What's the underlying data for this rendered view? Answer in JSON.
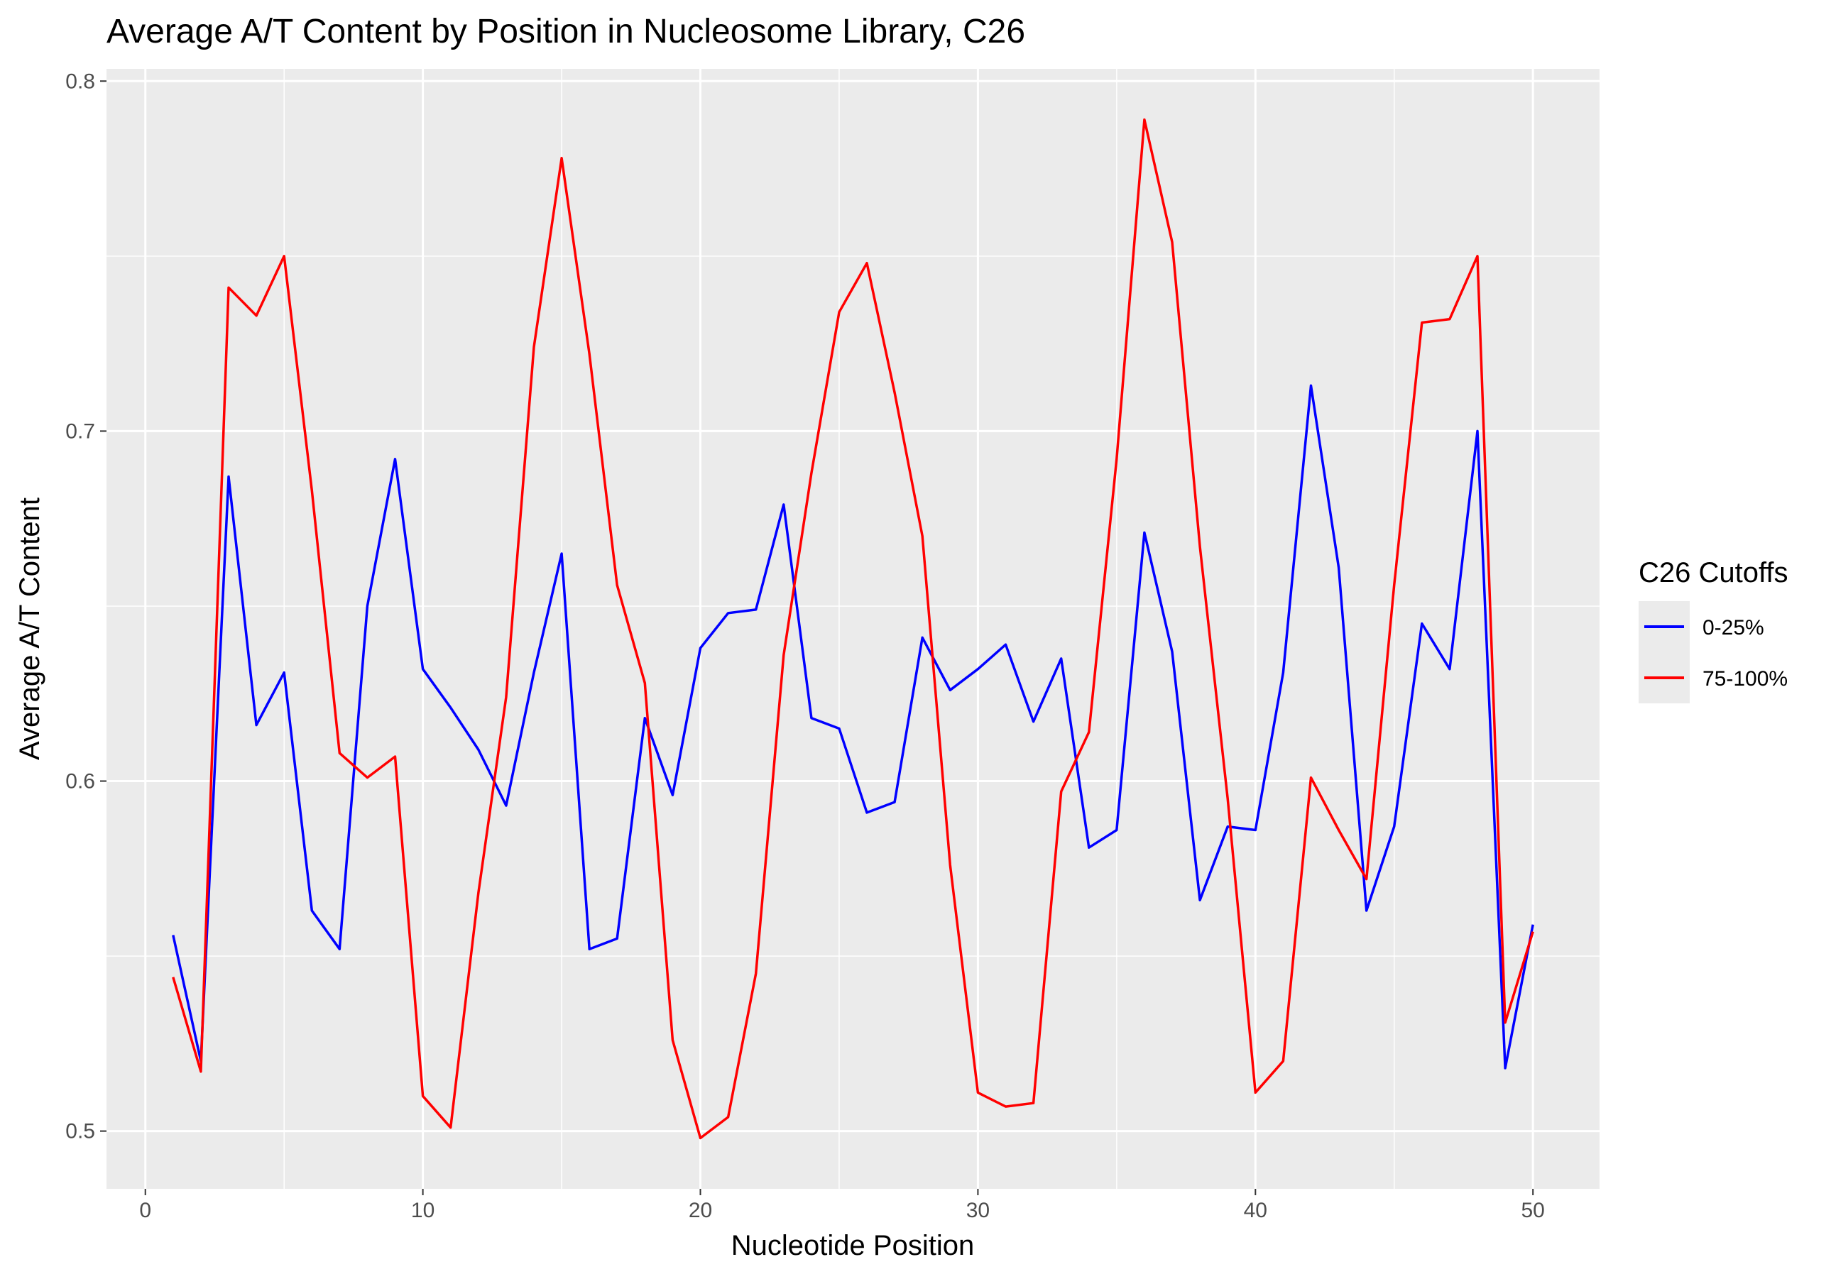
{
  "colors": {
    "panel_bg": "#EBEBEB",
    "grid": "#FFFFFF",
    "tick": "#333333",
    "series_0_25": "#0000FF",
    "series_75_100": "#FF0000"
  },
  "chart_data": {
    "type": "line",
    "title": "Average A/T Content by Position in Nucleosome Library, C26",
    "xlabel": "Nucleotide Position",
    "ylabel": "Average A/T Content",
    "xlim": [
      -1.4,
      52.4
    ],
    "ylim": [
      0.4835,
      0.8035
    ],
    "xticks": [
      0,
      10,
      20,
      30,
      40,
      50
    ],
    "xtick_labels": [
      "0",
      "10",
      "20",
      "30",
      "40",
      "50"
    ],
    "yticks": [
      0.5,
      0.6,
      0.7,
      0.8
    ],
    "ytick_labels": [
      "0.5",
      "0.6",
      "0.7",
      "0.8"
    ],
    "grid": true,
    "legend": {
      "title": "C26 Cutoffs",
      "position": "right"
    },
    "x": [
      1,
      2,
      3,
      4,
      5,
      6,
      7,
      8,
      9,
      10,
      11,
      12,
      13,
      14,
      15,
      16,
      17,
      18,
      19,
      20,
      21,
      22,
      23,
      24,
      25,
      26,
      27,
      28,
      29,
      30,
      31,
      32,
      33,
      34,
      35,
      36,
      37,
      38,
      39,
      40,
      41,
      42,
      43,
      44,
      45,
      46,
      47,
      48,
      49,
      50
    ],
    "series": [
      {
        "name": "0-25%",
        "color": "#0000FF",
        "values": [
          0.556,
          0.52,
          0.687,
          0.616,
          0.631,
          0.563,
          0.552,
          0.65,
          0.692,
          0.632,
          0.621,
          0.609,
          0.593,
          0.631,
          0.665,
          0.552,
          0.555,
          0.618,
          0.596,
          0.638,
          0.648,
          0.649,
          0.679,
          0.618,
          0.615,
          0.591,
          0.594,
          0.641,
          0.626,
          0.632,
          0.639,
          0.617,
          0.635,
          0.581,
          0.586,
          0.671,
          0.637,
          0.566,
          0.587,
          0.586,
          0.631,
          0.713,
          0.661,
          0.563,
          0.587,
          0.645,
          0.632,
          0.7,
          0.518,
          0.559
        ]
      },
      {
        "name": "75-100%",
        "color": "#FF0000",
        "values": [
          0.544,
          0.517,
          0.741,
          0.733,
          0.75,
          0.683,
          0.608,
          0.601,
          0.607,
          0.51,
          0.501,
          0.568,
          0.624,
          0.724,
          0.778,
          0.722,
          0.656,
          0.628,
          0.526,
          0.498,
          0.504,
          0.545,
          0.636,
          0.688,
          0.734,
          0.748,
          0.711,
          0.67,
          0.576,
          0.511,
          0.507,
          0.508,
          0.597,
          0.614,
          0.692,
          0.789,
          0.754,
          0.667,
          0.595,
          0.511,
          0.52,
          0.601,
          0.586,
          0.572,
          0.656,
          0.731,
          0.732,
          0.75,
          0.531,
          0.557
        ]
      }
    ]
  }
}
